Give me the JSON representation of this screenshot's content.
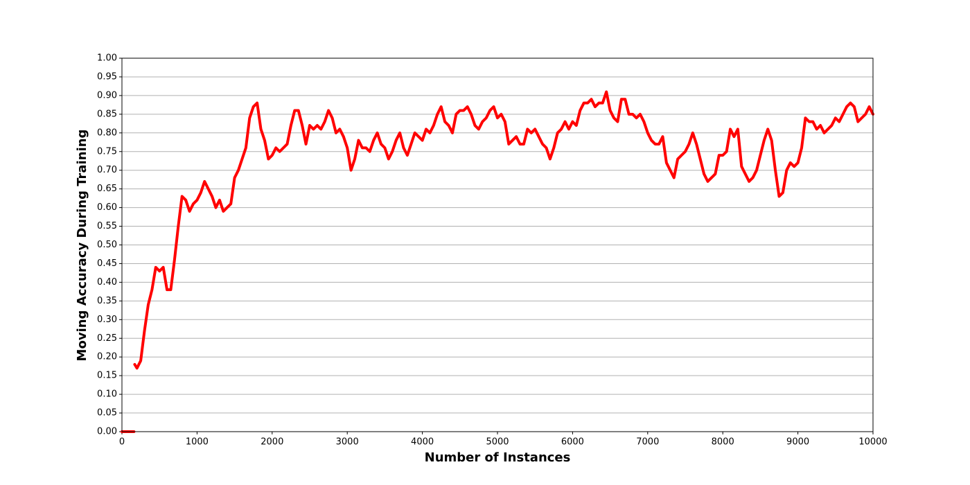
{
  "chart_data": {
    "type": "line",
    "xlabel": "Number of Instances",
    "ylabel": "Moving Accuracy During Training",
    "x": [
      0,
      160,
      165,
      170,
      200,
      250,
      300,
      350,
      400,
      450,
      500,
      550,
      600,
      650,
      700,
      750,
      800,
      850,
      900,
      950,
      1000,
      1050,
      1100,
      1150,
      1200,
      1250,
      1300,
      1350,
      1400,
      1450,
      1500,
      1550,
      1600,
      1650,
      1700,
      1750,
      1800,
      1850,
      1900,
      1950,
      2000,
      2050,
      2100,
      2150,
      2200,
      2250,
      2300,
      2350,
      2400,
      2450,
      2500,
      2550,
      2600,
      2650,
      2700,
      2750,
      2800,
      2850,
      2900,
      2950,
      3000,
      3050,
      3100,
      3150,
      3200,
      3250,
      3300,
      3350,
      3400,
      3450,
      3500,
      3550,
      3600,
      3650,
      3700,
      3750,
      3800,
      3850,
      3900,
      3950,
      4000,
      4050,
      4100,
      4150,
      4200,
      4250,
      4300,
      4350,
      4400,
      4450,
      4500,
      4550,
      4600,
      4650,
      4700,
      4750,
      4800,
      4850,
      4900,
      4950,
      5000,
      5050,
      5100,
      5150,
      5200,
      5250,
      5300,
      5350,
      5400,
      5450,
      5500,
      5550,
      5600,
      5650,
      5700,
      5750,
      5800,
      5850,
      5900,
      5950,
      6000,
      6050,
      6100,
      6150,
      6200,
      6250,
      6300,
      6350,
      6400,
      6450,
      6500,
      6550,
      6600,
      6650,
      6700,
      6750,
      6800,
      6850,
      6900,
      6950,
      7000,
      7050,
      7100,
      7150,
      7200,
      7250,
      7300,
      7350,
      7400,
      7450,
      7500,
      7550,
      7600,
      7650,
      7700,
      7750,
      7800,
      7850,
      7900,
      7950,
      8000,
      8050,
      8100,
      8150,
      8200,
      8250,
      8300,
      8350,
      8400,
      8450,
      8500,
      8550,
      8600,
      8650,
      8700,
      8750,
      8800,
      8850,
      8900,
      8950,
      9000,
      9050,
      9100,
      9150,
      9200,
      9250,
      9300,
      9350,
      9400,
      9450,
      9500,
      9550,
      9600,
      9650,
      9700,
      9750,
      9800,
      9850,
      9900,
      9950,
      10000
    ],
    "series": [
      {
        "color": "#ff0000",
        "values": [
          0,
          0,
          null,
          0.18,
          0.17,
          0.19,
          0.27,
          0.34,
          0.38,
          0.44,
          0.43,
          0.44,
          0.38,
          0.38,
          0.46,
          0.55,
          0.63,
          0.62,
          0.59,
          0.61,
          0.62,
          0.64,
          0.67,
          0.65,
          0.63,
          0.6,
          0.62,
          0.59,
          0.6,
          0.61,
          0.68,
          0.7,
          0.73,
          0.76,
          0.84,
          0.87,
          0.88,
          0.81,
          0.78,
          0.73,
          0.74,
          0.76,
          0.75,
          0.76,
          0.77,
          0.82,
          0.86,
          0.86,
          0.82,
          0.77,
          0.82,
          0.81,
          0.82,
          0.81,
          0.83,
          0.86,
          0.84,
          0.8,
          0.81,
          0.79,
          0.76,
          0.7,
          0.73,
          0.78,
          0.76,
          0.76,
          0.75,
          0.78,
          0.8,
          0.77,
          0.76,
          0.73,
          0.75,
          0.78,
          0.8,
          0.76,
          0.74,
          0.77,
          0.8,
          0.79,
          0.78,
          0.81,
          0.8,
          0.82,
          0.85,
          0.87,
          0.83,
          0.82,
          0.8,
          0.85,
          0.86,
          0.86,
          0.87,
          0.85,
          0.82,
          0.81,
          0.83,
          0.84,
          0.86,
          0.87,
          0.84,
          0.85,
          0.83,
          0.77,
          0.78,
          0.79,
          0.77,
          0.77,
          0.81,
          0.8,
          0.81,
          0.79,
          0.77,
          0.76,
          0.73,
          0.76,
          0.8,
          0.81,
          0.83,
          0.81,
          0.83,
          0.82,
          0.86,
          0.88,
          0.88,
          0.89,
          0.87,
          0.88,
          0.88,
          0.91,
          0.86,
          0.84,
          0.83,
          0.89,
          0.89,
          0.85,
          0.85,
          0.84,
          0.85,
          0.83,
          0.8,
          0.78,
          0.77,
          0.77,
          0.79,
          0.72,
          0.7,
          0.68,
          0.73,
          0.74,
          0.75,
          0.77,
          0.8,
          0.77,
          0.73,
          0.69,
          0.67,
          0.68,
          0.69,
          0.74,
          0.74,
          0.75,
          0.81,
          0.79,
          0.81,
          0.71,
          0.69,
          0.67,
          0.68,
          0.7,
          0.74,
          0.78,
          0.81,
          0.78,
          0.7,
          0.63,
          0.64,
          0.7,
          0.72,
          0.71,
          0.72,
          0.76,
          0.84,
          0.83,
          0.83,
          0.81,
          0.82,
          0.8,
          0.81,
          0.82,
          0.84,
          0.83,
          0.85,
          0.87,
          0.88,
          0.87,
          0.83,
          0.84,
          0.85,
          0.87,
          0.85
        ]
      }
    ],
    "xlim": [
      0,
      10000
    ],
    "xticks": [
      0,
      1000,
      2000,
      3000,
      4000,
      5000,
      6000,
      7000,
      8000,
      9000,
      10000
    ],
    "ylim": [
      0,
      1
    ],
    "yticks": [
      {
        "value": 0,
        "label": "0.00"
      },
      0.05,
      {
        "value": 0.1,
        "label": "0.10"
      },
      0.15,
      {
        "value": 0.2,
        "label": "0.20"
      },
      0.25,
      {
        "value": 0.3,
        "label": "0.30"
      },
      0.35,
      {
        "value": 0.4,
        "label": "0.40"
      },
      0.45,
      {
        "value": 0.5,
        "label": "0.50"
      },
      0.55,
      {
        "value": 0.6,
        "label": "0.60"
      },
      0.65,
      {
        "value": 0.7,
        "label": "0.70"
      },
      0.75,
      {
        "value": 0.8,
        "label": "0.80"
      },
      0.85,
      {
        "value": 0.9,
        "label": "0.90"
      },
      0.95,
      {
        "value": 1,
        "label": "1.00"
      }
    ],
    "grid": "y"
  }
}
